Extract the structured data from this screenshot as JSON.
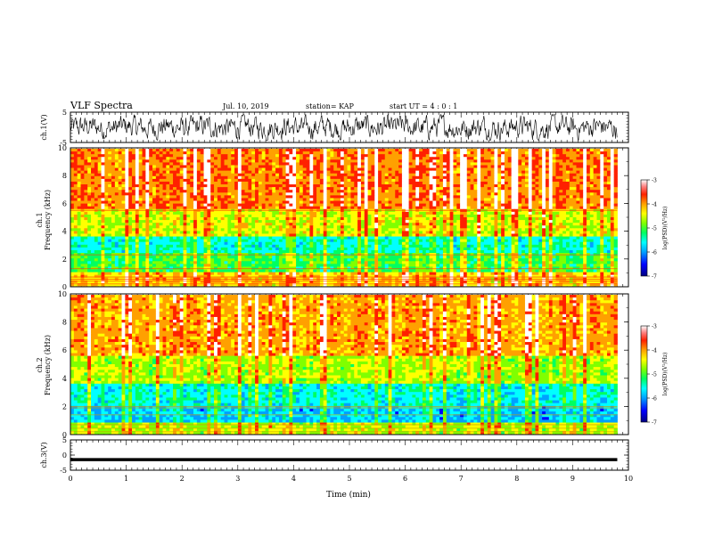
{
  "header": {
    "title": "VLF Spectra",
    "date": "Jul. 10, 2019",
    "station": "station= KAP",
    "start_ut": "start UT =   4 : 0  : 1"
  },
  "colorbar": {
    "ticks": [
      "-3",
      "-4",
      "-5",
      "-6",
      "-7"
    ],
    "label": "log(PSD)(V²/Hz)",
    "colors": [
      "#000080",
      "#0000ff",
      "#00a0ff",
      "#00ffff",
      "#00ff60",
      "#80ff00",
      "#ffff00",
      "#ffa000",
      "#ff2000",
      "#ffffff"
    ]
  },
  "chart_data": [
    {
      "type": "line",
      "name": "ch1-waveform",
      "ylabel": "ch.1(V)",
      "ylim": [
        -5,
        5
      ],
      "yticks": [
        "5",
        "-5"
      ],
      "xlim": [
        0,
        10
      ],
      "description_values": "noisy waveform oscillating roughly between -3 and +3 V for 0–9.8 min"
    },
    {
      "type": "heatmap",
      "name": "ch1-spectrogram",
      "ylabel": "ch.1\nFrequency (kHz)",
      "ylim": [
        0,
        10
      ],
      "yticks": [
        "0",
        "2",
        "4",
        "6",
        "8",
        "10"
      ],
      "xlim": [
        0,
        10
      ],
      "data_end_min": 9.8,
      "zlim": [
        -7,
        -3
      ],
      "zlabel": "log(PSD)(V²/Hz)"
    },
    {
      "type": "heatmap",
      "name": "ch2-spectrogram",
      "ylabel": "ch.2\nFrequency (kHz)",
      "ylim": [
        0,
        10
      ],
      "yticks": [
        "0",
        "2",
        "4",
        "6",
        "8",
        "10"
      ],
      "xlim": [
        0,
        10
      ],
      "data_end_min": 9.8,
      "zlim": [
        -7,
        -3
      ],
      "zlabel": "log(PSD)(V²/Hz)"
    },
    {
      "type": "line",
      "name": "ch3-waveform",
      "ylabel": "ch.3(V)",
      "ylim": [
        -5,
        5
      ],
      "yticks": [
        "5",
        "0",
        "-5"
      ],
      "xlim": [
        0,
        10
      ],
      "xticks": [
        "0",
        "1",
        "2",
        "3",
        "4",
        "5",
        "6",
        "7",
        "8",
        "9",
        "10"
      ],
      "xlabel": "Time (min)",
      "constant_value": -1.5
    }
  ]
}
